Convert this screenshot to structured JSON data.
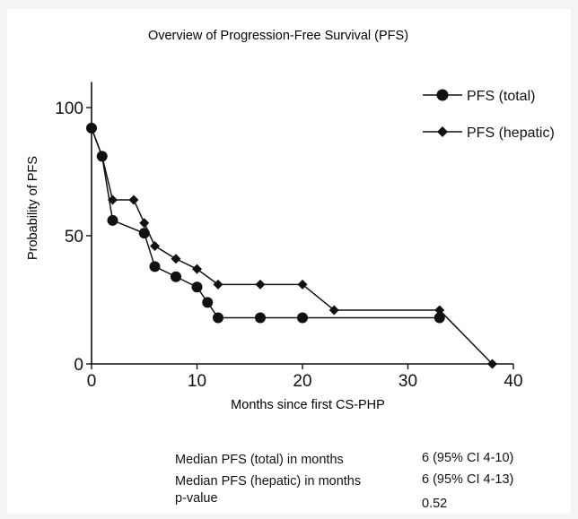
{
  "chart_data": {
    "type": "line",
    "title": "Overview of Progression-Free Survival (PFS)",
    "xlabel": "Months since first CS-PHP",
    "ylabel": "Probability of PFS",
    "xlim": [
      0,
      40
    ],
    "ylim": [
      0,
      110
    ],
    "x_ticks": [
      0,
      10,
      20,
      30,
      40
    ],
    "y_ticks": [
      0,
      50,
      100
    ],
    "grid": false,
    "legend_position": "top-right",
    "series": [
      {
        "name": "PFS (total)",
        "marker": "circle",
        "x": [
          0,
          1,
          2,
          5,
          6,
          8,
          10,
          11,
          12,
          16,
          20,
          33
        ],
        "y": [
          92,
          81,
          56,
          51,
          38,
          34,
          30,
          24,
          18,
          18,
          18,
          18
        ]
      },
      {
        "name": "PFS (hepatic)",
        "marker": "diamond",
        "x": [
          0,
          1,
          2,
          4,
          5,
          6,
          8,
          10,
          12,
          16,
          20,
          23,
          33,
          38
        ],
        "y": [
          92,
          81,
          64,
          64,
          55,
          46,
          41,
          37,
          31,
          31,
          31,
          21,
          21,
          0
        ]
      }
    ]
  },
  "summary": [
    {
      "label": "Median PFS (total) in months",
      "value": "6 (95% CI 4-10)"
    },
    {
      "label": "Median PFS (hepatic) in months",
      "value": "6 (95% CI 4-13)"
    },
    {
      "label": "p-value",
      "value": "0.52"
    }
  ]
}
